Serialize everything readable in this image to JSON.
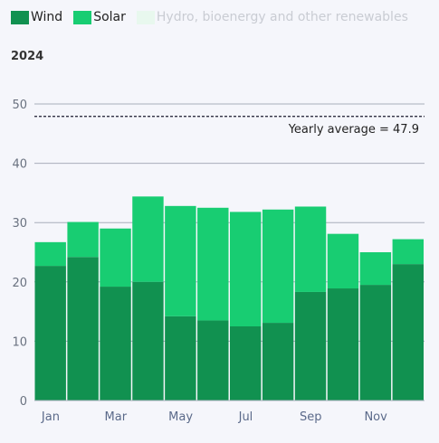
{
  "colors": {
    "wind": "#119150",
    "solar": "#18cd72",
    "hydro": "#e8f8ee",
    "grid": "#a8adbb",
    "average": "#1a1a2e"
  },
  "chart_data": {
    "type": "bar",
    "stacked": true,
    "subtitle": "2024",
    "legend": [
      {
        "name": "Wind",
        "active": true
      },
      {
        "name": "Solar",
        "active": true
      },
      {
        "name": "Hydro, bioenergy and other renewables",
        "active": false
      }
    ],
    "categories": [
      "Jan",
      "Feb",
      "Mar",
      "Apr",
      "May",
      "Jun",
      "Jul",
      "Aug",
      "Sep",
      "Oct",
      "Nov",
      "Dec"
    ],
    "x_tick_labels": [
      "Jan",
      "Mar",
      "May",
      "Jul",
      "Sep",
      "Nov"
    ],
    "series": [
      {
        "name": "Wind",
        "values": [
          22.7,
          24.2,
          19.2,
          20.0,
          14.2,
          13.5,
          12.5,
          13.1,
          18.3,
          18.9,
          19.5,
          23.0
        ]
      },
      {
        "name": "Solar",
        "values": [
          4.0,
          5.9,
          9.8,
          14.4,
          18.6,
          19.0,
          19.3,
          19.1,
          14.4,
          9.2,
          5.5,
          4.2
        ]
      }
    ],
    "ylim": [
      0,
      50
    ],
    "y_ticks": [
      0,
      10,
      20,
      30,
      40,
      50
    ],
    "grid": true,
    "average": {
      "value": 47.9,
      "label": "Yearly average = 47.9"
    }
  }
}
